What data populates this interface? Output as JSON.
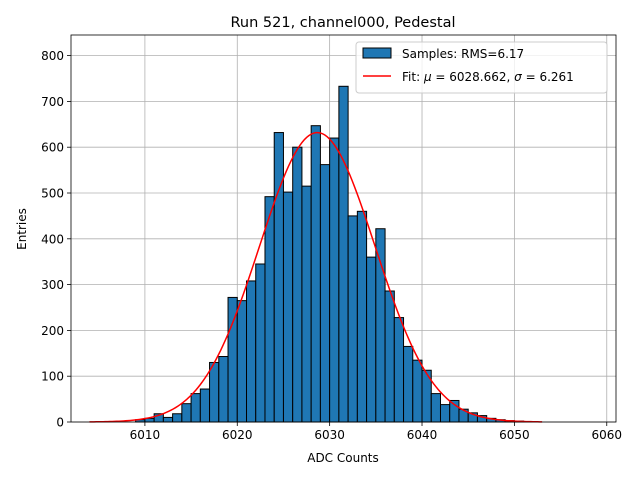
{
  "chart_data": {
    "type": "bar",
    "title": "Run 521, channel000, Pedestal",
    "xlabel": "ADC Counts",
    "ylabel": "Entries",
    "xlim": [
      6002,
      6061
    ],
    "ylim": [
      0,
      845
    ],
    "xticks": [
      6010,
      6020,
      6030,
      6040,
      6050,
      6060
    ],
    "yticks": [
      0,
      100,
      200,
      300,
      400,
      500,
      600,
      700,
      800
    ],
    "grid": true,
    "bin_width": 1,
    "bin_start": 6009,
    "counts": [
      5,
      8,
      18,
      10,
      18,
      40,
      62,
      72,
      130,
      143,
      272,
      265,
      308,
      345,
      492,
      632,
      502,
      600,
      515,
      647,
      562,
      620,
      733,
      450,
      460,
      360,
      422,
      286,
      228,
      165,
      135,
      113,
      62,
      38,
      47,
      28,
      20,
      14,
      8,
      5,
      3,
      2,
      1
    ],
    "histogram_color": "#1f77b4",
    "fit": {
      "mu": 6028.662,
      "sigma": 6.261,
      "amplitude": 632,
      "x_range": [
        6004,
        6053
      ],
      "color": "#ff0000"
    },
    "legend": {
      "location": "top-right",
      "entries": [
        {
          "label": "Samples: RMS=6.17"
        },
        {
          "label_prefix": "Fit: ",
          "mu_symbol": "μ",
          "mu_text": " = 6028.662, ",
          "sigma_symbol": "σ",
          "sigma_text": " = 6.261"
        }
      ]
    }
  }
}
